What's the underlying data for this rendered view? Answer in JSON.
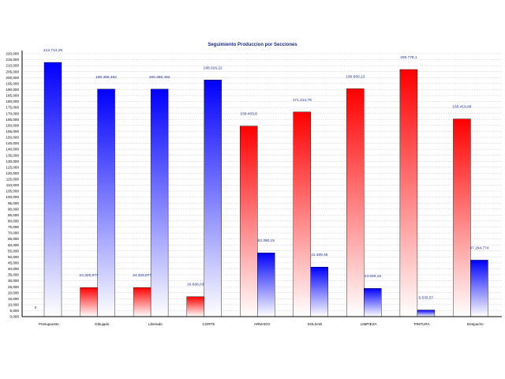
{
  "chart_data": {
    "type": "bar",
    "title": "Seguimiento Produccion por Secciones",
    "xlabel": "",
    "ylabel": "",
    "ylim": [
      0,
      220000
    ],
    "ytick_step": 5000,
    "ytick_labels": [
      "0,000",
      "5,000",
      "10,000",
      "15,000",
      "20,000",
      "25,000",
      "30,000",
      "35,000",
      "40,000",
      "45,000",
      "50,000",
      "55,000",
      "60,000",
      "65,000",
      "70,000",
      "75,000",
      "80,000",
      "85,000",
      "90,000",
      "95,000",
      "100,000",
      "105,000",
      "110,000",
      "115,000",
      "120,000",
      "125,000",
      "130,000",
      "135,000",
      "140,000",
      "145,000",
      "150,000",
      "155,000",
      "160,000",
      "165,000",
      "170,000",
      "175,000",
      "180,000",
      "185,000",
      "190,000",
      "195,000",
      "200,000",
      "205,000",
      "210,000",
      "215,000",
      "220,000"
    ],
    "grid": true,
    "legend": "none",
    "categories": [
      "Presupuesto",
      "Dibujado",
      "Liberado",
      "CORTE",
      "ARMADO",
      "SOLDAD.",
      "LIMPIEZA",
      "PINTURA",
      "Despacho"
    ],
    "bars": [
      {
        "category": "Presupuesto",
        "value": 0,
        "label": "0",
        "color": "red"
      },
      {
        "category": "Presupuesto",
        "value": 212714.28,
        "label": "212.714,28",
        "color": "blue"
      },
      {
        "category": "Dibujado",
        "value": 24325.877,
        "label": "24.325,877",
        "color": "red"
      },
      {
        "category": "Dibujado",
        "value": 190368.482,
        "label": "190.368,482",
        "color": "blue"
      },
      {
        "category": "Liberado",
        "value": 24325.877,
        "label": "24.325,877",
        "color": "red"
      },
      {
        "category": "Liberado",
        "value": 190368.482,
        "label": "190.368,482",
        "color": "blue"
      },
      {
        "category": "CORTE",
        "value": 16696.03,
        "label": "16.696,03",
        "color": "red"
      },
      {
        "category": "CORTE",
        "value": 198016.22,
        "label": "198.016,22",
        "color": "blue"
      },
      {
        "category": "ARMADO",
        "value": 159433.8,
        "label": "159.433,8",
        "color": "red"
      },
      {
        "category": "ARMADO",
        "value": 53390.15,
        "label": "53.390,15",
        "color": "blue"
      },
      {
        "category": "SOLDAD.",
        "value": 171214.79,
        "label": "171.214,79",
        "color": "red"
      },
      {
        "category": "SOLDAD.",
        "value": 41489.45,
        "label": "41.489,45",
        "color": "blue"
      },
      {
        "category": "LIMPIEZA",
        "value": 190660.13,
        "label": "190.660,13",
        "color": "red"
      },
      {
        "category": "LIMPIEZA",
        "value": 23646.15,
        "label": "23.646,15",
        "color": "blue"
      },
      {
        "category": "PINTURA",
        "value": 206778.1,
        "label": "206.778,1",
        "color": "red"
      },
      {
        "category": "PINTURA",
        "value": 5535.57,
        "label": "5.535,57",
        "color": "blue"
      },
      {
        "category": "Despacho",
        "value": 165419.99,
        "label": "165.419,99",
        "color": "red"
      },
      {
        "category": "Despacho",
        "value": 47294.774,
        "label": "47.294,774",
        "color": "blue"
      }
    ]
  },
  "colors": {
    "red": "#ff0000",
    "blue": "#0000ff",
    "grid": "#c0c0c0",
    "axis": "#000000",
    "label": "#1a2e8a"
  }
}
